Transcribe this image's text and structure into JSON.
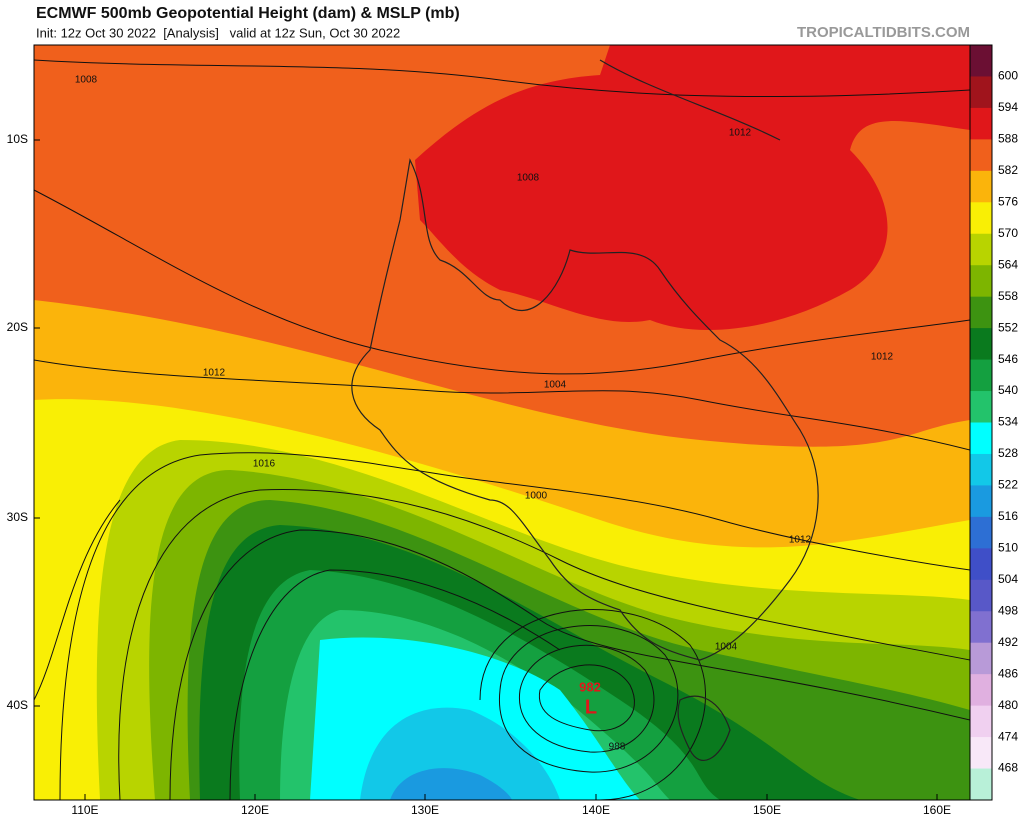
{
  "header": {
    "title": "ECMWF 500mb Geopotential Height (dam) & MSLP (mb)",
    "subtitle": "Init: 12z Oct 30 2022  [Analysis]   valid at 12z Sun, Oct 30 2022",
    "brand": "TROPICALTIDBITS.COM"
  },
  "lat_labels": [
    "10S",
    "20S",
    "30S",
    "40S"
  ],
  "lon_labels": [
    "110E",
    "120E",
    "130E",
    "140E",
    "150E",
    "160E"
  ],
  "colorbar": {
    "labels": [
      "600",
      "594",
      "588",
      "582",
      "576",
      "570",
      "564",
      "558",
      "552",
      "546",
      "540",
      "534",
      "528",
      "522",
      "516",
      "510",
      "504",
      "498",
      "492",
      "486",
      "480",
      "474",
      "468"
    ],
    "colors": [
      "#6b0f33",
      "#a0141c",
      "#e0171a",
      "#f0601c",
      "#fbb40b",
      "#f9ef05",
      "#b8d400",
      "#7db500",
      "#3d9311",
      "#0a7a1e",
      "#14a040",
      "#23c36b",
      "#00ffff",
      "#12c8e8",
      "#1a9ae0",
      "#2d6fd4",
      "#3f4fc8",
      "#5858c8",
      "#8070d0",
      "#b89ad8",
      "#e0b0e0",
      "#f0d0f0",
      "#f8e8f8",
      "#b8f0d8"
    ]
  },
  "contour_labels": [
    "1008",
    "1012",
    "1008",
    "1012",
    "1012",
    "1004",
    "1016",
    "1000",
    "1012",
    "1004",
    "988"
  ],
  "low": {
    "pressure": "982",
    "symbol": "L"
  }
}
